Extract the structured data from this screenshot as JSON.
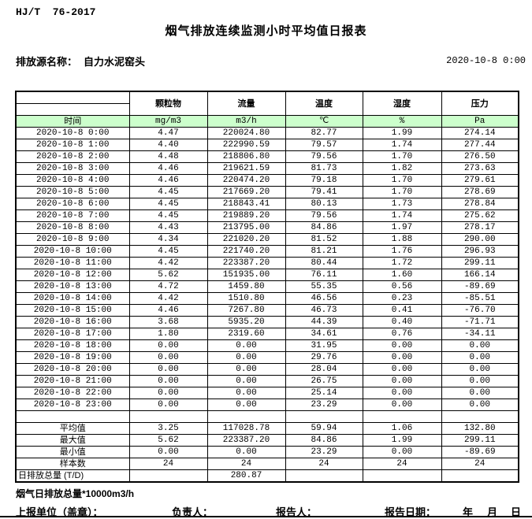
{
  "header": {
    "standard_number": "HJ/T  76-2017",
    "title": "烟气排放连续监测小时平均值日报表",
    "source_label": "排放源名称：",
    "source_value": "自力水泥窑头",
    "report_datetime": "2020-10-8 0:00"
  },
  "table": {
    "time_header": "时间",
    "columns": [
      {
        "label": "颗粒物",
        "unit": "mg/m3"
      },
      {
        "label": "流量",
        "unit": "m3/h"
      },
      {
        "label": "温度",
        "unit": "℃"
      },
      {
        "label": "湿度",
        "unit": "%"
      },
      {
        "label": "压力",
        "unit": "Pa"
      }
    ],
    "rows": [
      {
        "time": "2020-10-8 0:00",
        "values": [
          "4.47",
          "220024.80",
          "82.77",
          "1.99",
          "274.14"
        ]
      },
      {
        "time": "2020-10-8 1:00",
        "values": [
          "4.40",
          "222990.59",
          "79.57",
          "1.74",
          "277.44"
        ]
      },
      {
        "time": "2020-10-8 2:00",
        "values": [
          "4.48",
          "218806.80",
          "79.56",
          "1.70",
          "276.50"
        ]
      },
      {
        "time": "2020-10-8 3:00",
        "values": [
          "4.46",
          "219621.59",
          "81.73",
          "1.82",
          "273.63"
        ]
      },
      {
        "time": "2020-10-8 4:00",
        "values": [
          "4.46",
          "220474.20",
          "79.18",
          "1.70",
          "279.61"
        ]
      },
      {
        "time": "2020-10-8 5:00",
        "values": [
          "4.45",
          "217669.20",
          "79.41",
          "1.70",
          "278.69"
        ]
      },
      {
        "time": "2020-10-8 6:00",
        "values": [
          "4.45",
          "218843.41",
          "80.13",
          "1.73",
          "278.84"
        ]
      },
      {
        "time": "2020-10-8 7:00",
        "values": [
          "4.45",
          "219889.20",
          "79.56",
          "1.74",
          "275.62"
        ]
      },
      {
        "time": "2020-10-8 8:00",
        "values": [
          "4.43",
          "213795.00",
          "84.86",
          "1.97",
          "278.17"
        ]
      },
      {
        "time": "2020-10-8 9:00",
        "values": [
          "4.34",
          "221020.20",
          "81.52",
          "1.88",
          "290.00"
        ]
      },
      {
        "time": "2020-10-8 10:00",
        "values": [
          "4.45",
          "221740.20",
          "81.21",
          "1.76",
          "296.93"
        ]
      },
      {
        "time": "2020-10-8 11:00",
        "values": [
          "4.42",
          "223387.20",
          "80.44",
          "1.72",
          "299.11"
        ]
      },
      {
        "time": "2020-10-8 12:00",
        "values": [
          "5.62",
          "151935.00",
          "76.11",
          "1.60",
          "166.14"
        ]
      },
      {
        "time": "2020-10-8 13:00",
        "values": [
          "4.72",
          "1459.80",
          "55.35",
          "0.56",
          "-89.69"
        ]
      },
      {
        "time": "2020-10-8 14:00",
        "values": [
          "4.42",
          "1510.80",
          "46.56",
          "0.23",
          "-85.51"
        ]
      },
      {
        "time": "2020-10-8 15:00",
        "values": [
          "4.46",
          "7267.80",
          "46.73",
          "0.41",
          "-76.70"
        ]
      },
      {
        "time": "2020-10-8 16:00",
        "values": [
          "3.68",
          "5935.20",
          "44.39",
          "0.40",
          "-71.71"
        ]
      },
      {
        "time": "2020-10-8 17:00",
        "values": [
          "1.80",
          "2319.60",
          "34.61",
          "0.76",
          "-34.11"
        ]
      },
      {
        "time": "2020-10-8 18:00",
        "values": [
          "0.00",
          "0.00",
          "31.95",
          "0.00",
          "0.00"
        ]
      },
      {
        "time": "2020-10-8 19:00",
        "values": [
          "0.00",
          "0.00",
          "29.76",
          "0.00",
          "0.00"
        ]
      },
      {
        "time": "2020-10-8 20:00",
        "values": [
          "0.00",
          "0.00",
          "28.04",
          "0.00",
          "0.00"
        ]
      },
      {
        "time": "2020-10-8 21:00",
        "values": [
          "0.00",
          "0.00",
          "26.75",
          "0.00",
          "0.00"
        ]
      },
      {
        "time": "2020-10-8 22:00",
        "values": [
          "0.00",
          "0.00",
          "25.14",
          "0.00",
          "0.00"
        ]
      },
      {
        "time": "2020-10-8 23:00",
        "values": [
          "0.00",
          "0.00",
          "23.29",
          "0.00",
          "0.00"
        ]
      }
    ],
    "summary_rows": [
      {
        "label": "平均值",
        "values": [
          "3.25",
          "117028.78",
          "59.94",
          "1.06",
          "132.80"
        ]
      },
      {
        "label": "最大值",
        "values": [
          "5.62",
          "223387.20",
          "84.86",
          "1.99",
          "299.11"
        ]
      },
      {
        "label": "最小值",
        "values": [
          "0.00",
          "0.00",
          "23.29",
          "0.00",
          "-89.69"
        ]
      },
      {
        "label": "样本数",
        "values": [
          "24",
          "24",
          "24",
          "24",
          "24"
        ]
      },
      {
        "label": "日排放总量 (T/D)",
        "values": [
          "",
          "280.87",
          "",
          "",
          ""
        ],
        "label_align": "left"
      }
    ]
  },
  "footer": {
    "flow_note": "烟气日排放总量*10000m3/h",
    "report_unit_label": "上报单位（盖章）：",
    "responsible_label": "负责人：",
    "reporter_label": "报告人：",
    "report_date_label": "报告日期：",
    "year_label": "年",
    "month_label": "月",
    "day_label": "日"
  },
  "colors": {
    "unit_row_background": "#CCFFCC",
    "border": "#000000"
  }
}
